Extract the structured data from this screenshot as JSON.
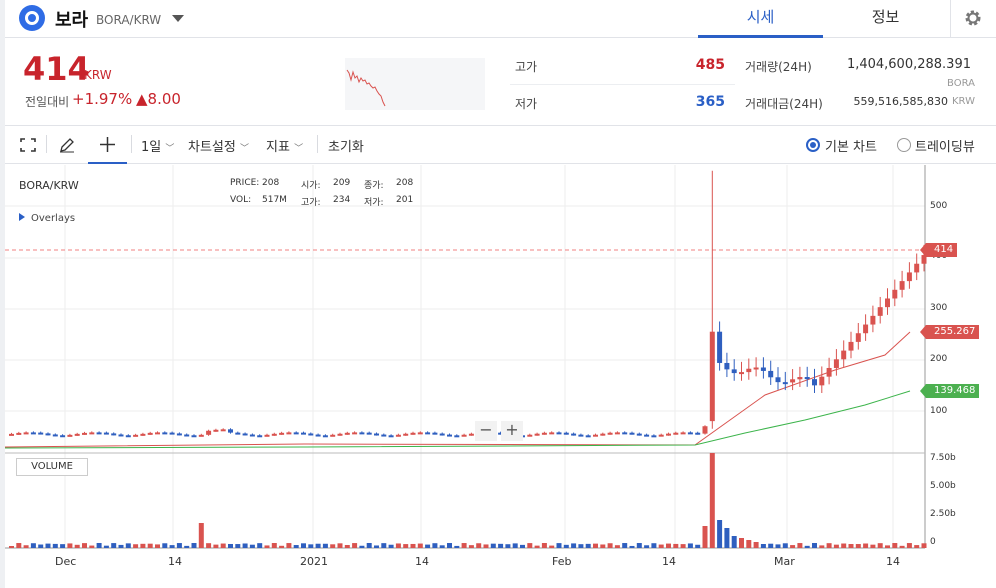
{
  "header": {
    "coin_name": "보라",
    "pair": "BORA/KRW",
    "tabs": [
      {
        "label": "시세",
        "active": true
      },
      {
        "label": "정보",
        "active": false
      }
    ],
    "icons": {
      "logo": "bora-logo-icon",
      "dropdown": "chevron-down-icon",
      "settings": "gear-icon"
    }
  },
  "price": {
    "current": "414",
    "unit": "KRW",
    "prev_label": "전일대비",
    "change_pct": "+1.97%",
    "change_abs": "▲8.00"
  },
  "stats": {
    "high_label": "고가",
    "high": "485",
    "low_label": "저가",
    "low": "365",
    "volume_label": "거래량(24H)",
    "volume": "1,404,600,288.391",
    "volume_unit": "BORA",
    "amount_label": "거래대금(24H)",
    "amount": "559,516,585,830",
    "amount_unit": "KRW"
  },
  "toolbar": {
    "interval": "1일",
    "chart_settings": "차트설정",
    "indicators": "지표",
    "reset": "초기화",
    "basic_chart": "기본 차트",
    "tradingview": "트레이딩뷰"
  },
  "chart": {
    "symbol": "BORA/KRW",
    "ohlc": {
      "price_label": "PRICE:",
      "price": "208",
      "open_label": "시가:",
      "open": "209",
      "close_label": "종가:",
      "close": "208",
      "vol_label": "VOL:",
      "vol": "517M",
      "high_label": "고가:",
      "high": "234",
      "low_label": "저가:",
      "low": "201"
    },
    "overlays_label": "Overlays",
    "volume_label": "VOLUME",
    "price_tags": {
      "last": "414",
      "ma1": "255.267",
      "ma2": "139.468"
    },
    "y_ticks": [
      "500",
      "400",
      "300",
      "200",
      "100"
    ],
    "vol_ticks": [
      "7.50b",
      "5.00b",
      "2.50b",
      "0"
    ],
    "x_ticks": [
      "Dec",
      "14",
      "2021",
      "14",
      "Feb",
      "14",
      "Mar",
      "14"
    ],
    "zoom_out": "−",
    "zoom_in": "+",
    "colors": {
      "up": "#d9534f",
      "down": "#2f5fbf",
      "ma1": "#d9534f",
      "ma2": "#3cb44b"
    }
  }
}
